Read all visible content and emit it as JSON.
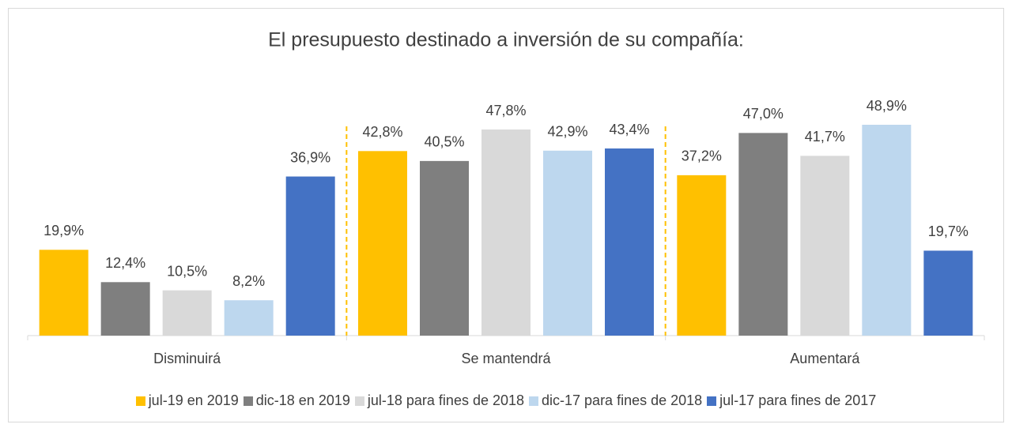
{
  "chart_data": {
    "type": "bar",
    "title": "El presupuesto destinado a inversión de su compañía:",
    "categories": [
      "Disminuirá",
      "Se mantendrá",
      "Aumentará"
    ],
    "series": [
      {
        "name": "jul-19 en 2019",
        "color": "#ffc000",
        "values": [
          19.9,
          42.8,
          37.2
        ],
        "value_labels": [
          "19,9%",
          "42,8%",
          "37,2%"
        ]
      },
      {
        "name": "dic-18 en 2019",
        "color": "#7f7f7f",
        "values": [
          12.4,
          40.5,
          47.0
        ],
        "value_labels": [
          "12,4%",
          "40,5%",
          "47,0%"
        ]
      },
      {
        "name": "jul-18 para fines de 2018",
        "color": "#d9d9d9",
        "values": [
          10.5,
          47.8,
          41.7
        ],
        "value_labels": [
          "10,5%",
          "47,8%",
          "41,7%"
        ]
      },
      {
        "name": "dic-17 para fines de 2018",
        "color": "#bdd7ee",
        "values": [
          8.2,
          42.9,
          48.9
        ],
        "value_labels": [
          "8,2%",
          "42,9%",
          "48,9%"
        ]
      },
      {
        "name": "jul-17 para fines de 2017",
        "color": "#4472c4",
        "values": [
          36.9,
          43.4,
          19.7
        ],
        "value_labels": [
          "36,9%",
          "43,4%",
          "19,7%"
        ]
      }
    ],
    "ylim": [
      0,
      50
    ],
    "legend": "bottom"
  }
}
